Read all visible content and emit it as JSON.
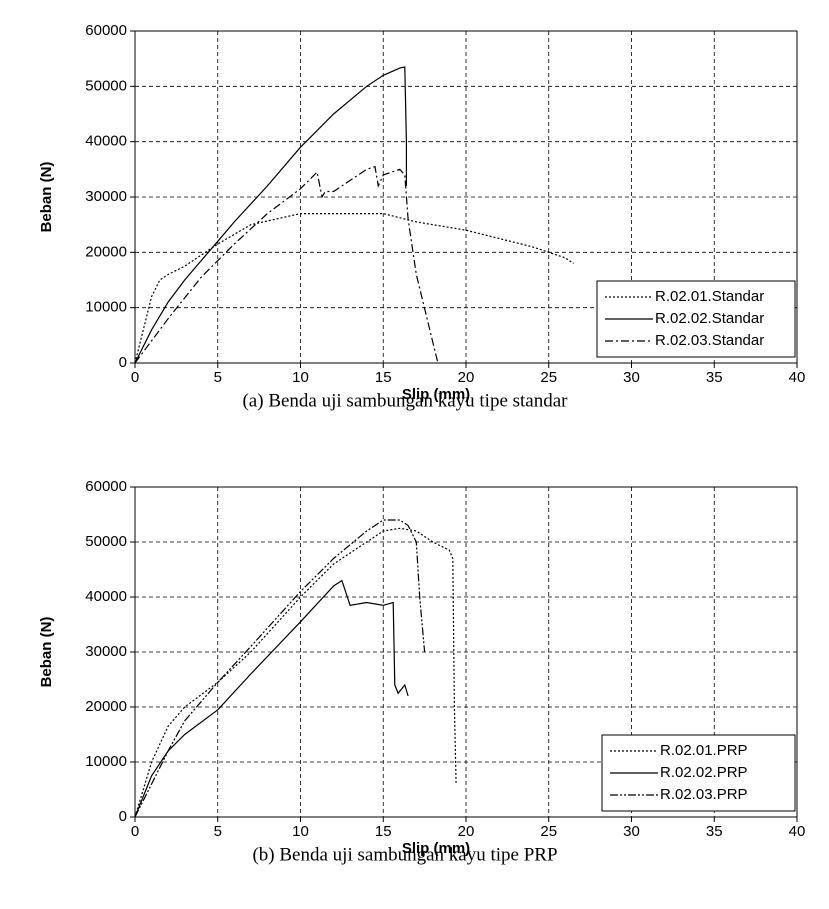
{
  "chart_data": [
    {
      "type": "line",
      "caption": "(a) Benda uji sambungan kayu tipe standar",
      "xlabel": "Slip (mm)",
      "ylabel": "Beban (N)",
      "xlim": [
        0,
        40
      ],
      "ylim": [
        0,
        60000
      ],
      "xticks": [
        0,
        5,
        10,
        15,
        20,
        25,
        30,
        35,
        40
      ],
      "yticks": [
        0,
        10000,
        20000,
        30000,
        40000,
        50000,
        60000
      ],
      "grid": true,
      "legend": "lower right",
      "series": [
        {
          "name": "R.02.01.Standar",
          "color": "#000000",
          "dash": "2,2",
          "x": [
            0,
            0.5,
            1,
            1.5,
            2,
            3,
            4,
            5,
            7,
            10,
            12,
            15,
            17,
            20,
            22,
            24,
            25,
            26,
            26.5
          ],
          "values": [
            0,
            6000,
            12000,
            15000,
            16000,
            17500,
            19500,
            21500,
            25000,
            27000,
            27000,
            27000,
            25500,
            24000,
            22500,
            21000,
            20000,
            19000,
            18000
          ]
        },
        {
          "name": "R.02.02.Standar",
          "color": "#000000",
          "dash": "none",
          "x": [
            0,
            1,
            2,
            3,
            4,
            5,
            6,
            8,
            10,
            12,
            14,
            15,
            16,
            16.3,
            16.4,
            16.4
          ],
          "values": [
            0,
            6000,
            11000,
            15000,
            18500,
            22000,
            25500,
            32000,
            39000,
            45000,
            50000,
            52000,
            53300,
            53500,
            40000,
            32000
          ]
        },
        {
          "name": "R.02.03.Standar",
          "color": "#000000",
          "dash": "8,3,2,3",
          "x": [
            0,
            2,
            4,
            6,
            8,
            10,
            11,
            11.3,
            11.5,
            12,
            13,
            14,
            14.5,
            14.7,
            15,
            16,
            16.3,
            16.5,
            17,
            18.3
          ],
          "values": [
            0,
            8000,
            15500,
            21500,
            27000,
            31500,
            34500,
            30000,
            31000,
            31000,
            33000,
            35000,
            35500,
            32000,
            34000,
            35000,
            34000,
            26000,
            16000,
            0
          ]
        }
      ]
    },
    {
      "type": "line",
      "caption": "(b) Benda uji sambungan kayu tipe PRP",
      "xlabel": "Slip (mm)",
      "ylabel": "Beban (N)",
      "xlim": [
        0,
        40
      ],
      "ylim": [
        0,
        60000
      ],
      "xticks": [
        0,
        5,
        10,
        15,
        20,
        25,
        30,
        35,
        40
      ],
      "yticks": [
        0,
        10000,
        20000,
        30000,
        40000,
        50000,
        60000
      ],
      "grid": true,
      "legend": "lower right",
      "series": [
        {
          "name": "R.02.01.PRP",
          "color": "#000000",
          "dash": "2,2",
          "x": [
            0,
            1,
            2,
            3,
            5,
            7,
            10,
            12,
            14,
            15,
            16,
            17,
            18,
            19,
            19.2,
            19.3,
            19.4
          ],
          "values": [
            0,
            10000,
            16500,
            20000,
            24500,
            30000,
            40000,
            46000,
            50000,
            52000,
            52500,
            52000,
            50000,
            48500,
            47000,
            20000,
            6000
          ]
        },
        {
          "name": "R.02.02.PRP",
          "color": "#000000",
          "dash": "none",
          "x": [
            0,
            1,
            2,
            3,
            5,
            7,
            10,
            12,
            12.5,
            13,
            14,
            15,
            15.6,
            15.7,
            15.9,
            16.3,
            16.5
          ],
          "values": [
            0,
            7500,
            12000,
            15000,
            19500,
            26000,
            35500,
            42000,
            43000,
            38500,
            39000,
            38500,
            39000,
            24000,
            22500,
            24000,
            22000
          ]
        },
        {
          "name": "R.02.03.PRP",
          "color": "#000000",
          "dash": "8,2,2,2,2,2",
          "x": [
            0,
            1,
            2,
            3,
            5,
            7,
            10,
            12,
            14,
            15,
            16,
            16.5,
            17,
            17.2,
            17.5
          ],
          "values": [
            0,
            6000,
            12000,
            17500,
            24500,
            31000,
            41000,
            47000,
            52000,
            54000,
            54000,
            53000,
            50000,
            40000,
            30000
          ]
        }
      ]
    }
  ]
}
